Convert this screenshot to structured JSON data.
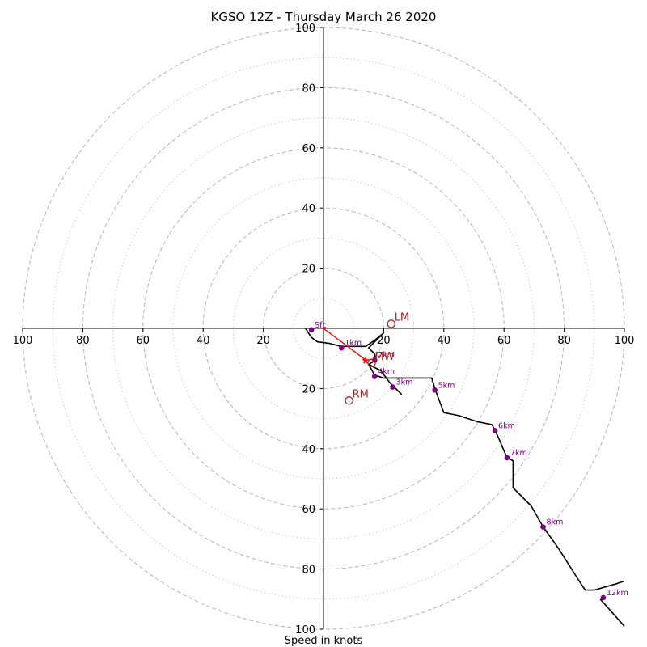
{
  "chart_data": {
    "type": "hodograph",
    "title": "KGSO 12Z - Thursday March 26 2020",
    "xlabel": "Speed in knots",
    "units": "knots",
    "range": [
      -100,
      100
    ],
    "ring_speeds_major": [
      20,
      40,
      60,
      80,
      100
    ],
    "ring_speeds_minor": [
      10,
      30,
      50,
      70,
      90
    ],
    "tick_labels_x": [
      "100",
      "80",
      "60",
      "40",
      "20",
      "20",
      "40",
      "60",
      "80",
      "100"
    ],
    "tick_labels_y": [
      "100",
      "80",
      "60",
      "40",
      "20",
      "20",
      "40",
      "60",
      "80",
      "100"
    ],
    "grid": true,
    "trace": [
      {
        "u": -6,
        "v": 0
      },
      {
        "u": -4,
        "v": -3
      },
      {
        "u": -2,
        "v": -4.5
      },
      {
        "u": 2,
        "v": -5
      },
      {
        "u": 6,
        "v": -6
      },
      {
        "u": 10,
        "v": -6
      },
      {
        "u": 14,
        "v": -6
      },
      {
        "u": 17,
        "v": -4
      },
      {
        "u": 20,
        "v": -1.5
      },
      {
        "u": 15,
        "v": -6.5
      },
      {
        "u": 17,
        "v": -8.5
      },
      {
        "u": 17.5,
        "v": -10.5
      },
      {
        "u": 15,
        "v": -12
      },
      {
        "u": 17,
        "v": -15.5
      },
      {
        "u": 20,
        "v": -16.5
      },
      {
        "u": 21,
        "v": -16.5
      },
      {
        "u": 30,
        "v": -16.5
      },
      {
        "u": 36,
        "v": -16.5
      },
      {
        "u": 37,
        "v": -20
      },
      {
        "u": 40,
        "v": -28
      },
      {
        "u": 45,
        "v": -29
      },
      {
        "u": 51,
        "v": -31
      },
      {
        "u": 56,
        "v": -32
      },
      {
        "u": 58,
        "v": -36
      },
      {
        "u": 61,
        "v": -43
      },
      {
        "u": 63,
        "v": -44
      },
      {
        "u": 63,
        "v": -53
      },
      {
        "u": 69,
        "v": -59
      },
      {
        "u": 73,
        "v": -66
      },
      {
        "u": 78,
        "v": -73
      },
      {
        "u": 85,
        "v": -84
      },
      {
        "u": 87,
        "v": -87
      },
      {
        "u": 90,
        "v": -87
      },
      {
        "u": 97,
        "v": -85
      },
      {
        "u": 100,
        "v": -84
      }
    ],
    "trace_tail": [
      {
        "u": 15,
        "v": -12
      },
      {
        "u": 19,
        "v": -14
      },
      {
        "u": 22,
        "v": -18
      },
      {
        "u": 26,
        "v": -22
      }
    ],
    "trace_tail_upper": [
      {
        "u": 92,
        "v": -90
      },
      {
        "u": 100,
        "v": -99
      }
    ],
    "height_markers": [
      {
        "label": "Sfc",
        "u": -4,
        "v": -0.5
      },
      {
        "label": "1km",
        "u": 6,
        "v": -6.5
      },
      {
        "label": "2km",
        "u": 17,
        "v": -10.5
      },
      {
        "label": "3km",
        "u": 23,
        "v": -19.5
      },
      {
        "label": "4km",
        "u": 17,
        "v": -16
      },
      {
        "label": "5km",
        "u": 37,
        "v": -20.5
      },
      {
        "label": "6km",
        "u": 57,
        "v": -34
      },
      {
        "label": "7km",
        "u": 61,
        "v": -43
      },
      {
        "label": "8km",
        "u": 73,
        "v": -66
      },
      {
        "label": "12km",
        "u": 93,
        "v": -89.5
      }
    ],
    "storm_motion": [
      {
        "label": "LM",
        "u": 22.5,
        "v": 1.5
      },
      {
        "label": "MW",
        "u": 16,
        "v": -11.5
      },
      {
        "label": "RM",
        "u": 8.5,
        "v": -24
      }
    ],
    "shear_vector": {
      "from": {
        "u": 0,
        "v": 0
      },
      "to": {
        "u": 14,
        "v": -10.5
      }
    },
    "colors": {
      "trace": "#000000",
      "height_marker": "#800080",
      "storm_motion": "#b22222",
      "shear_vector": "#ff0000",
      "ring": "#bbbbbb"
    }
  }
}
